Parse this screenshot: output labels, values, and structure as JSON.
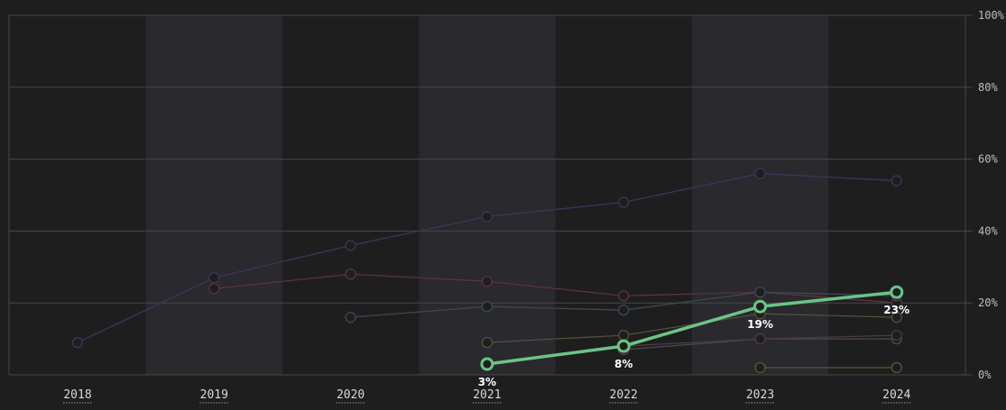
{
  "colors": {
    "background": "#1f1e1f",
    "band": "#2a292d",
    "grid": "#474747",
    "highlight": "#6cc487"
  },
  "chart_data": {
    "type": "line",
    "x": [
      2018,
      2019,
      2020,
      2021,
      2022,
      2023,
      2024
    ],
    "x_tick_labels": [
      "2018",
      "2019",
      "2020",
      "2021",
      "2022",
      "2023",
      "2024"
    ],
    "ylim": [
      0,
      100
    ],
    "y_ticks": [
      0,
      20,
      40,
      60,
      80,
      100
    ],
    "y_tick_labels": [
      "0%",
      "20%",
      "40%",
      "60%",
      "80%",
      "100%"
    ],
    "y_axis_side": "right",
    "grid": true,
    "alternating_column_bands": true,
    "series": [
      {
        "values": [
          9,
          27,
          36,
          44,
          48,
          56,
          54
        ],
        "color": "#3a3757",
        "highlight": false
      },
      {
        "values": [
          null,
          24,
          28,
          26,
          22,
          23,
          20
        ],
        "color": "#5a3440",
        "highlight": false
      },
      {
        "values": [
          null,
          null,
          16,
          19,
          18,
          23,
          22
        ],
        "color": "#3b4a55",
        "highlight": false
      },
      {
        "values": [
          null,
          null,
          null,
          9,
          11,
          17,
          16
        ],
        "color": "#55503c",
        "highlight": false
      },
      {
        "values": [
          null,
          null,
          null,
          null,
          7,
          10,
          10
        ],
        "color": "#4a4a4a",
        "highlight": false
      },
      {
        "values": [
          null,
          null,
          null,
          null,
          8,
          10,
          11
        ],
        "color": "#4d3a45",
        "highlight": false
      },
      {
        "values": [
          null,
          null,
          null,
          null,
          null,
          2,
          2
        ],
        "color": "#5a5a30",
        "highlight": false
      },
      {
        "values": [
          null,
          null,
          null,
          3,
          8,
          19,
          23
        ],
        "color": "#6cc487",
        "highlight": true,
        "data_labels": [
          null,
          null,
          null,
          "3%",
          "8%",
          "19%",
          "23%"
        ]
      }
    ]
  }
}
